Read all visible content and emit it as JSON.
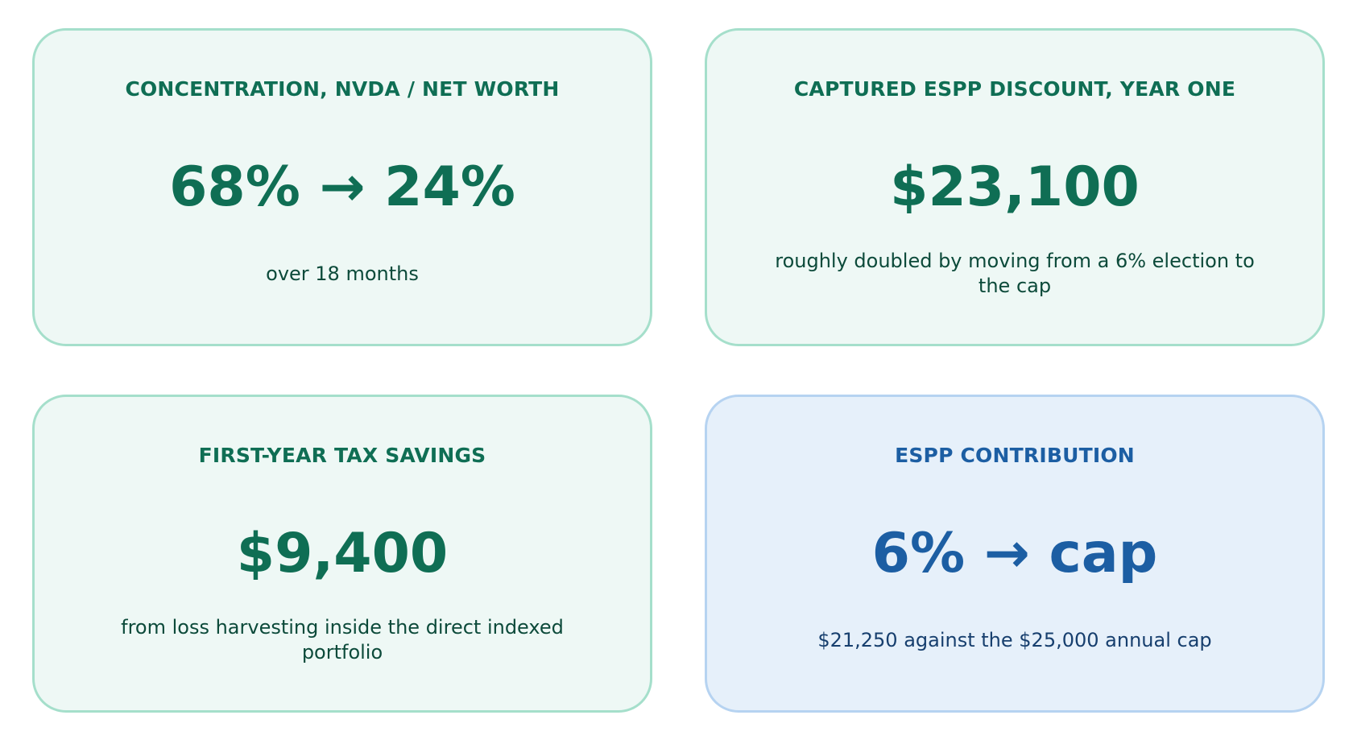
{
  "cards": [
    {
      "label": "CONCENTRATION, NVDA / NET WORTH",
      "value": "68% → 24%",
      "note": "over 18 months"
    },
    {
      "label": "CAPTURED ESPP DISCOUNT, YEAR ONE",
      "value": "$23,100",
      "note": "roughly doubled by moving from a 6% election to the cap"
    },
    {
      "label": "FIRST-YEAR TAX SAVINGS",
      "value": "$9,400",
      "note": "from loss harvesting inside the direct indexed portfolio"
    },
    {
      "label": "ESPP CONTRIBUTION",
      "value": "6% → cap",
      "note": "$21,250 against the $25,000 annual cap"
    }
  ],
  "colors": {
    "green_card_bg": "#eef8f5",
    "green_card_border": "#a5dfcb",
    "green_text": "#0f6e54",
    "blue_card_bg": "#e6f0fa",
    "blue_card_border": "#b6d3f1",
    "blue_text": "#1c5ea3"
  }
}
